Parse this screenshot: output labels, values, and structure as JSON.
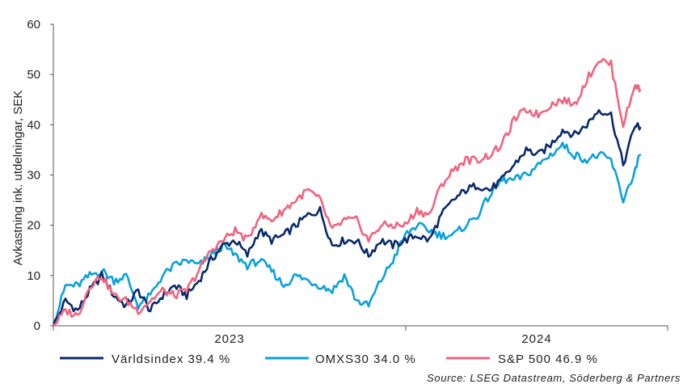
{
  "chart_data": {
    "type": "line",
    "ylabel": "Avkastning ink. utdelningar, SEK",
    "ylim": [
      0,
      60
    ],
    "yticks": [
      "0",
      "10",
      "20",
      "30",
      "40",
      "50",
      "60"
    ],
    "x_period_labels": [
      "2023",
      "2024"
    ],
    "source": "Source: LSEG Datastream, Söderberg & Partners",
    "grid": false,
    "legend_position": "bottom",
    "x_unit": "month",
    "x_range": [
      0,
      24.2
    ],
    "series": [
      {
        "name": "Världsindex 39.4 %",
        "color": "#0a2a6b",
        "x": [
          0,
          0.5,
          1,
          1.5,
          2,
          2.5,
          3,
          3.5,
          4,
          4.5,
          5,
          5.5,
          6,
          6.5,
          7,
          7.5,
          8,
          8.5,
          9,
          9.5,
          10,
          10.5,
          11,
          11.5,
          12,
          12.5,
          13,
          13.5,
          14,
          14.5,
          15,
          15.5,
          16,
          16.5,
          17,
          17.5,
          18,
          18.5,
          19,
          19.5,
          20,
          20.5,
          21,
          21.5,
          22,
          22.5,
          23,
          23.5,
          24,
          24.2
        ],
        "y": [
          0,
          5,
          3,
          7,
          10,
          6,
          4,
          7,
          3,
          6,
          8,
          6,
          9,
          13,
          16,
          17,
          14,
          19,
          17,
          18,
          20,
          22,
          23,
          16,
          17,
          17,
          14,
          17,
          16,
          17,
          18,
          17,
          22,
          25,
          27,
          28,
          27,
          29,
          32,
          35,
          34,
          36,
          39,
          38,
          40,
          43,
          42,
          32,
          40,
          39.4
        ]
      },
      {
        "name": "OMXS30 34.0 %",
        "color": "#0aa1db",
        "x": [
          0,
          0.5,
          1,
          1.5,
          2,
          2.5,
          3,
          3.5,
          4,
          4.5,
          5,
          5.5,
          6,
          6.5,
          7,
          7.5,
          8,
          8.5,
          9,
          9.5,
          10,
          10.5,
          11,
          11.5,
          12,
          12.5,
          13,
          13.5,
          14,
          14.5,
          15,
          15.5,
          16,
          16.5,
          17,
          17.5,
          18,
          18.5,
          19,
          19.5,
          20,
          20.5,
          21,
          21.5,
          22,
          22.5,
          23,
          23.5,
          24,
          24.2
        ],
        "y": [
          0,
          8,
          8,
          10,
          11,
          9,
          10,
          4,
          6,
          10,
          12,
          13,
          12,
          14,
          16,
          14,
          12,
          13,
          11,
          8,
          10,
          9,
          8,
          7,
          10,
          5,
          4,
          9,
          13,
          18,
          20,
          19,
          18,
          18,
          20,
          22,
          26,
          29,
          29,
          30,
          32,
          34,
          36,
          34,
          33,
          34,
          33,
          25,
          31,
          34.0
        ]
      },
      {
        "name": "S&P 500 46.9 %",
        "color": "#f0647f",
        "x": [
          0,
          0.5,
          1,
          1.5,
          2,
          2.5,
          3,
          3.5,
          4,
          4.5,
          5,
          5.5,
          6,
          6.5,
          7,
          7.5,
          8,
          8.5,
          9,
          9.5,
          10,
          10.5,
          11,
          11.5,
          12,
          12.5,
          13,
          13.5,
          14,
          14.5,
          15,
          15.5,
          16,
          16.5,
          17,
          17.5,
          18,
          18.5,
          19,
          19.5,
          20,
          20.5,
          21,
          21.5,
          22,
          22.5,
          23,
          23.5,
          24,
          24.2
        ],
        "y": [
          0,
          3,
          2,
          8,
          10,
          6,
          5,
          3,
          5,
          7,
          6,
          7,
          11,
          15,
          17,
          19,
          17,
          22,
          21,
          23,
          25,
          27,
          25,
          19,
          21,
          21,
          17,
          20,
          20,
          20,
          23,
          22,
          28,
          31,
          33,
          33,
          34,
          36,
          41,
          43,
          42,
          44,
          45,
          44,
          49,
          53,
          52,
          40,
          48,
          46.9
        ]
      }
    ]
  }
}
